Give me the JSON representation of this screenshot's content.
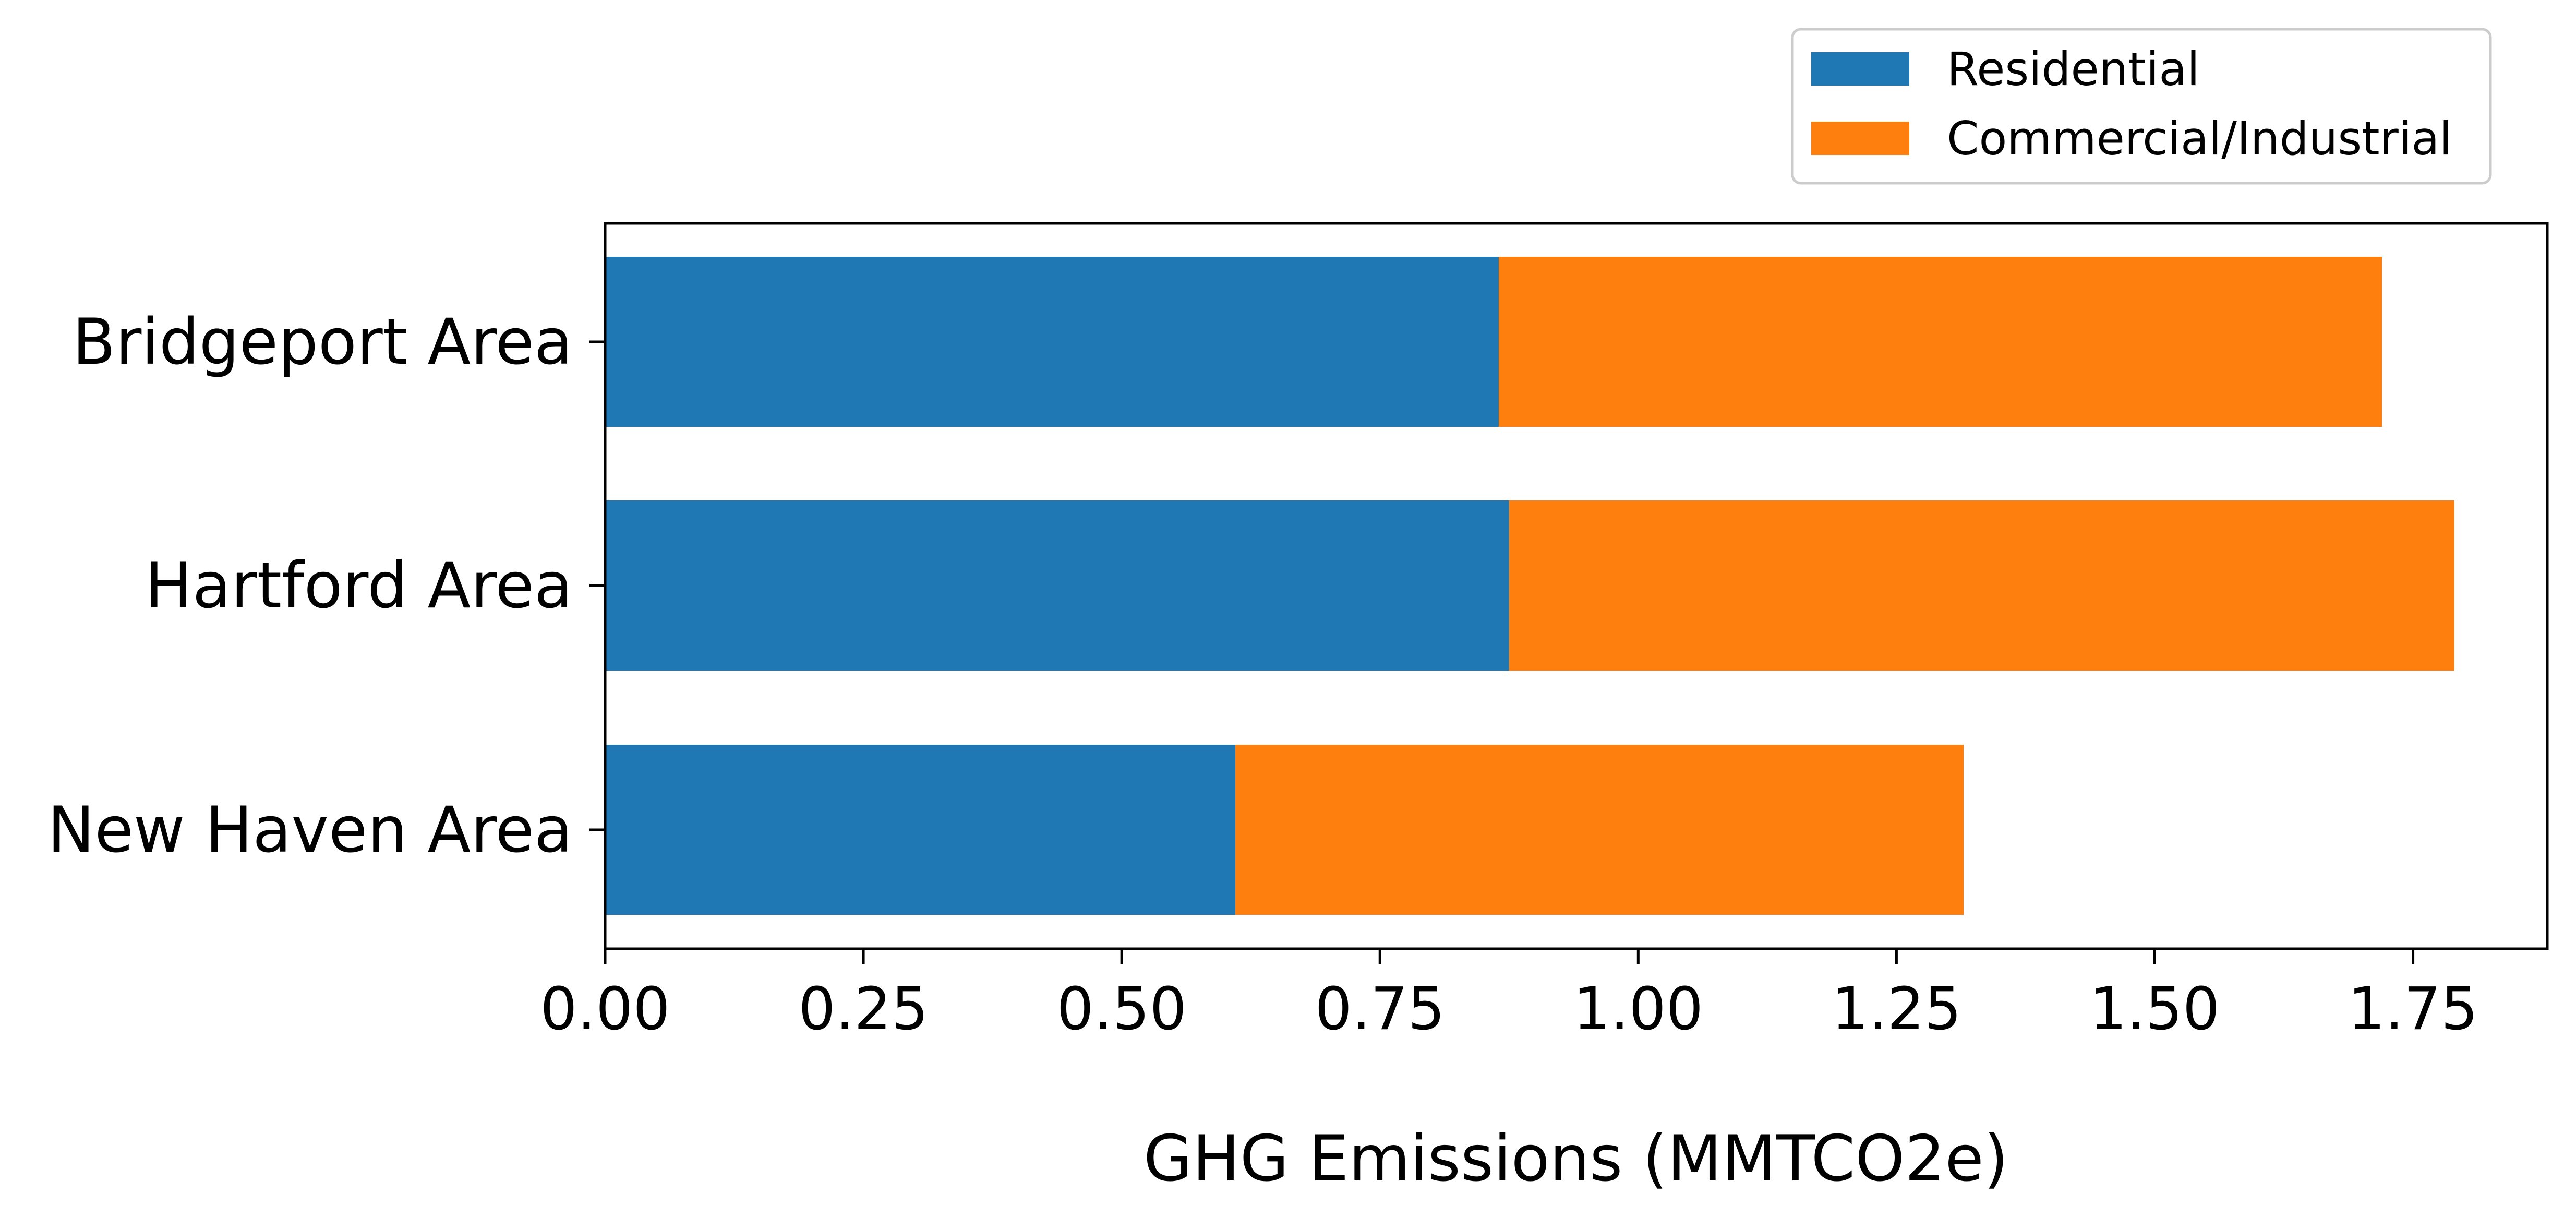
{
  "chart_data": {
    "type": "bar",
    "orientation": "horizontal",
    "stacked": true,
    "title": "",
    "xlabel": "GHG Emissions (MMTCO2e)",
    "ylabel": "",
    "categories": [
      "Bridgeport Area",
      "Hartford Area",
      "New Haven Area"
    ],
    "series": [
      {
        "name": "Residential",
        "color": "#1f77b4",
        "values": [
          0.865,
          0.875,
          0.61
        ]
      },
      {
        "name": "Commercial/Industrial",
        "color": "#ff7f0e",
        "values": [
          0.855,
          0.915,
          0.705
        ]
      }
    ],
    "xlim": [
      0,
      1.88
    ],
    "xticks": [
      0.0,
      0.25,
      0.5,
      0.75,
      1.0,
      1.25,
      1.5,
      1.75
    ],
    "xtick_labels": [
      "0.00",
      "0.25",
      "0.50",
      "0.75",
      "1.00",
      "1.25",
      "1.50",
      "1.75"
    ],
    "grid": false,
    "legend_position": "top-right, above plot"
  }
}
